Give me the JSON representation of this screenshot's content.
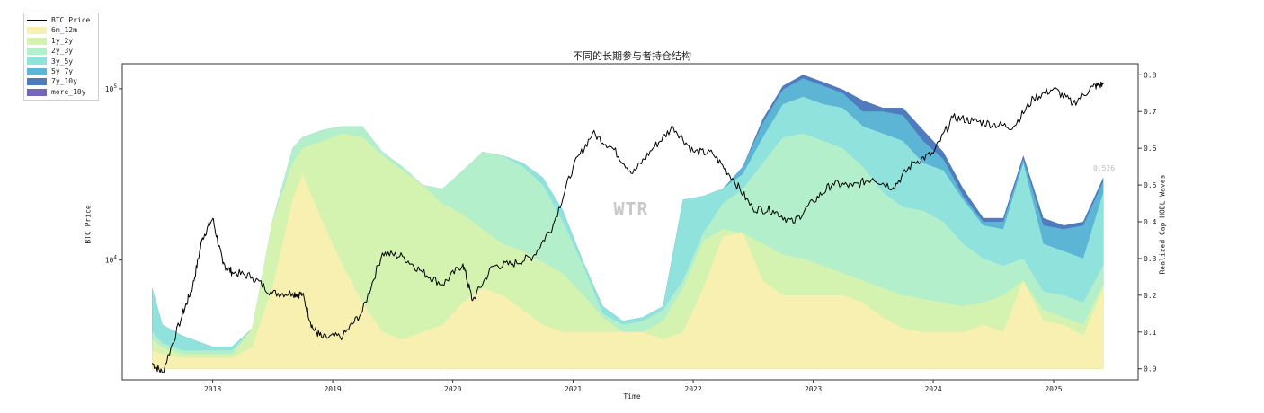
{
  "chart_data": {
    "type": "area",
    "title": "不同的长期参与者持仓结构",
    "xlabel": "Time",
    "ylabel_left": "BTC Price",
    "ylabel_right": "Realized Cap HODL Waves",
    "watermark": "WTR",
    "end_value_label": "0.526",
    "x_ticks": [
      "2018",
      "2019",
      "2020",
      "2021",
      "2022",
      "2023",
      "2024",
      "2025"
    ],
    "y_left": {
      "scale": "log",
      "range": [
        2000,
        140000
      ],
      "ticks": [
        {
          "value": 10000,
          "label": "10",
          "exp": "4"
        },
        {
          "value": 100000,
          "label": "10",
          "exp": "5"
        }
      ]
    },
    "y_right": {
      "range": [
        -0.03,
        0.83
      ],
      "ticks": [
        "0.0",
        "0.1",
        "0.2",
        "0.3",
        "0.4",
        "0.5",
        "0.6",
        "0.7",
        "0.8"
      ]
    },
    "x_range": [
      "2017-04-01",
      "2025-09-15"
    ],
    "legend": [
      {
        "name": "BTC Price",
        "kind": "line",
        "color": "#000000"
      },
      {
        "name": "6m_12m",
        "kind": "area",
        "color": "#f8f0b0"
      },
      {
        "name": "1y_2y",
        "kind": "area",
        "color": "#d4f3b0"
      },
      {
        "name": "2y_3y",
        "kind": "area",
        "color": "#b4efcc"
      },
      {
        "name": "3y_5y",
        "kind": "area",
        "color": "#90e2dc"
      },
      {
        "name": "5y_7y",
        "kind": "area",
        "color": "#5cb5d4"
      },
      {
        "name": "7y_10y",
        "kind": "area",
        "color": "#4e7cbe"
      },
      {
        "name": "more_10y",
        "kind": "area",
        "color": "#7566bc"
      }
    ],
    "cumulative_bands": {
      "dates": [
        "2017-07",
        "2017-08",
        "2017-10",
        "2017-12",
        "2018-01",
        "2018-03",
        "2018-05",
        "2018-07",
        "2018-09",
        "2018-10",
        "2018-12",
        "2019-02",
        "2019-04",
        "2019-06",
        "2019-08",
        "2019-10",
        "2019-12",
        "2020-02",
        "2020-04",
        "2020-06",
        "2020-08",
        "2020-10",
        "2020-12",
        "2021-02",
        "2021-04",
        "2021-06",
        "2021-08",
        "2021-10",
        "2021-12",
        "2022-02",
        "2022-04",
        "2022-06",
        "2022-08",
        "2022-10",
        "2022-12",
        "2023-02",
        "2023-04",
        "2023-06",
        "2023-08",
        "2023-10",
        "2023-12",
        "2024-02",
        "2024-04",
        "2024-06",
        "2024-08",
        "2024-10",
        "2024-12",
        "2025-02",
        "2025-04",
        "2025-06"
      ],
      "series": [
        {
          "name": "6m_12m",
          "values": [
            0.05,
            0.04,
            0.03,
            0.03,
            0.03,
            0.03,
            0.06,
            0.22,
            0.46,
            0.53,
            0.4,
            0.28,
            0.18,
            0.1,
            0.08,
            0.1,
            0.12,
            0.18,
            0.22,
            0.2,
            0.16,
            0.12,
            0.1,
            0.1,
            0.1,
            0.1,
            0.1,
            0.08,
            0.1,
            0.22,
            0.36,
            0.37,
            0.24,
            0.2,
            0.2,
            0.2,
            0.2,
            0.18,
            0.14,
            0.11,
            0.1,
            0.1,
            0.1,
            0.12,
            0.1,
            0.24,
            0.13,
            0.12,
            0.09,
            0.22
          ]
        },
        {
          "name": "1y_2y",
          "values": [
            0.08,
            0.06,
            0.04,
            0.04,
            0.04,
            0.04,
            0.11,
            0.4,
            0.56,
            0.6,
            0.62,
            0.64,
            0.63,
            0.58,
            0.54,
            0.5,
            0.45,
            0.42,
            0.38,
            0.34,
            0.32,
            0.29,
            0.26,
            0.2,
            0.14,
            0.1,
            0.1,
            0.13,
            0.22,
            0.35,
            0.38,
            0.37,
            0.34,
            0.31,
            0.3,
            0.28,
            0.26,
            0.24,
            0.22,
            0.2,
            0.19,
            0.18,
            0.17,
            0.18,
            0.2,
            0.24,
            0.16,
            0.14,
            0.12,
            0.23
          ]
        },
        {
          "name": "2y_3y",
          "values": [
            0.1,
            0.07,
            0.05,
            0.05,
            0.05,
            0.05,
            0.11,
            0.4,
            0.6,
            0.63,
            0.65,
            0.66,
            0.66,
            0.59,
            0.55,
            0.5,
            0.49,
            0.54,
            0.59,
            0.58,
            0.55,
            0.5,
            0.4,
            0.28,
            0.15,
            0.12,
            0.13,
            0.16,
            0.24,
            0.37,
            0.45,
            0.49,
            0.56,
            0.63,
            0.64,
            0.62,
            0.6,
            0.55,
            0.48,
            0.44,
            0.43,
            0.4,
            0.34,
            0.3,
            0.28,
            0.3,
            0.21,
            0.2,
            0.18,
            0.28
          ]
        },
        {
          "name": "3y_5y",
          "values": [
            0.22,
            0.12,
            0.09,
            0.07,
            0.06,
            0.06,
            0.11,
            0.4,
            0.6,
            0.63,
            0.65,
            0.66,
            0.66,
            0.59,
            0.55,
            0.5,
            0.49,
            0.54,
            0.59,
            0.58,
            0.56,
            0.52,
            0.43,
            0.29,
            0.17,
            0.13,
            0.14,
            0.17,
            0.46,
            0.47,
            0.49,
            0.53,
            0.63,
            0.72,
            0.74,
            0.72,
            0.71,
            0.66,
            0.64,
            0.62,
            0.56,
            0.54,
            0.46,
            0.39,
            0.38,
            0.56,
            0.34,
            0.32,
            0.3,
            0.48
          ]
        },
        {
          "name": "5y_7y",
          "values": [
            0.22,
            0.12,
            0.09,
            0.07,
            0.06,
            0.06,
            0.11,
            0.4,
            0.6,
            0.63,
            0.65,
            0.66,
            0.66,
            0.59,
            0.55,
            0.5,
            0.49,
            0.54,
            0.59,
            0.58,
            0.56,
            0.52,
            0.43,
            0.29,
            0.17,
            0.13,
            0.14,
            0.17,
            0.46,
            0.47,
            0.49,
            0.55,
            0.67,
            0.76,
            0.79,
            0.77,
            0.75,
            0.7,
            0.7,
            0.69,
            0.62,
            0.57,
            0.47,
            0.4,
            0.4,
            0.57,
            0.39,
            0.38,
            0.39,
            0.51
          ]
        },
        {
          "name": "7y_10y",
          "values": [
            0.22,
            0.12,
            0.09,
            0.07,
            0.06,
            0.06,
            0.11,
            0.4,
            0.6,
            0.63,
            0.65,
            0.66,
            0.66,
            0.59,
            0.55,
            0.5,
            0.49,
            0.54,
            0.59,
            0.58,
            0.56,
            0.52,
            0.43,
            0.29,
            0.17,
            0.13,
            0.14,
            0.17,
            0.46,
            0.47,
            0.49,
            0.55,
            0.68,
            0.77,
            0.8,
            0.78,
            0.76,
            0.73,
            0.71,
            0.71,
            0.65,
            0.59,
            0.49,
            0.41,
            0.41,
            0.58,
            0.41,
            0.39,
            0.4,
            0.52
          ]
        },
        {
          "name": "more_10y",
          "values": [
            0.22,
            0.12,
            0.09,
            0.07,
            0.06,
            0.06,
            0.11,
            0.4,
            0.6,
            0.63,
            0.65,
            0.66,
            0.66,
            0.59,
            0.55,
            0.5,
            0.49,
            0.54,
            0.59,
            0.58,
            0.56,
            0.52,
            0.43,
            0.29,
            0.17,
            0.13,
            0.14,
            0.17,
            0.46,
            0.47,
            0.49,
            0.55,
            0.68,
            0.77,
            0.8,
            0.78,
            0.76,
            0.73,
            0.71,
            0.71,
            0.65,
            0.59,
            0.49,
            0.41,
            0.41,
            0.58,
            0.41,
            0.39,
            0.4,
            0.52
          ]
        }
      ]
    },
    "btc_price": {
      "dates": [
        "2017-07",
        "2017-08",
        "2017-10",
        "2017-11",
        "2017-12",
        "2018-01",
        "2018-02",
        "2018-03",
        "2018-05",
        "2018-07",
        "2018-09",
        "2018-10",
        "2018-11",
        "2018-12",
        "2019-02",
        "2019-04",
        "2019-06",
        "2019-08",
        "2019-10",
        "2019-12",
        "2020-02",
        "2020-03",
        "2020-05",
        "2020-07",
        "2020-09",
        "2020-11",
        "2021-01",
        "2021-03",
        "2021-05",
        "2021-07",
        "2021-09",
        "2021-11",
        "2022-01",
        "2022-03",
        "2022-05",
        "2022-07",
        "2022-09",
        "2022-11",
        "2023-01",
        "2023-03",
        "2023-05",
        "2023-07",
        "2023-09",
        "2023-11",
        "2024-01",
        "2024-03",
        "2024-05",
        "2024-07",
        "2024-09",
        "2024-11",
        "2025-01",
        "2025-03",
        "2025-05",
        "2025-06"
      ],
      "values": [
        2500,
        2200,
        4800,
        7000,
        13500,
        17500,
        9500,
        8500,
        8000,
        6400,
        6400,
        6300,
        4000,
        3500,
        3600,
        5000,
        11000,
        10500,
        8500,
        7200,
        9500,
        5800,
        9200,
        9500,
        10500,
        16000,
        35000,
        55000,
        45000,
        32000,
        45000,
        60000,
        43000,
        42000,
        30000,
        20000,
        19500,
        16500,
        22000,
        28000,
        27000,
        30000,
        26500,
        37000,
        42000,
        68000,
        65000,
        62000,
        60000,
        88000,
        100000,
        82000,
        103000,
        106000
      ]
    }
  }
}
